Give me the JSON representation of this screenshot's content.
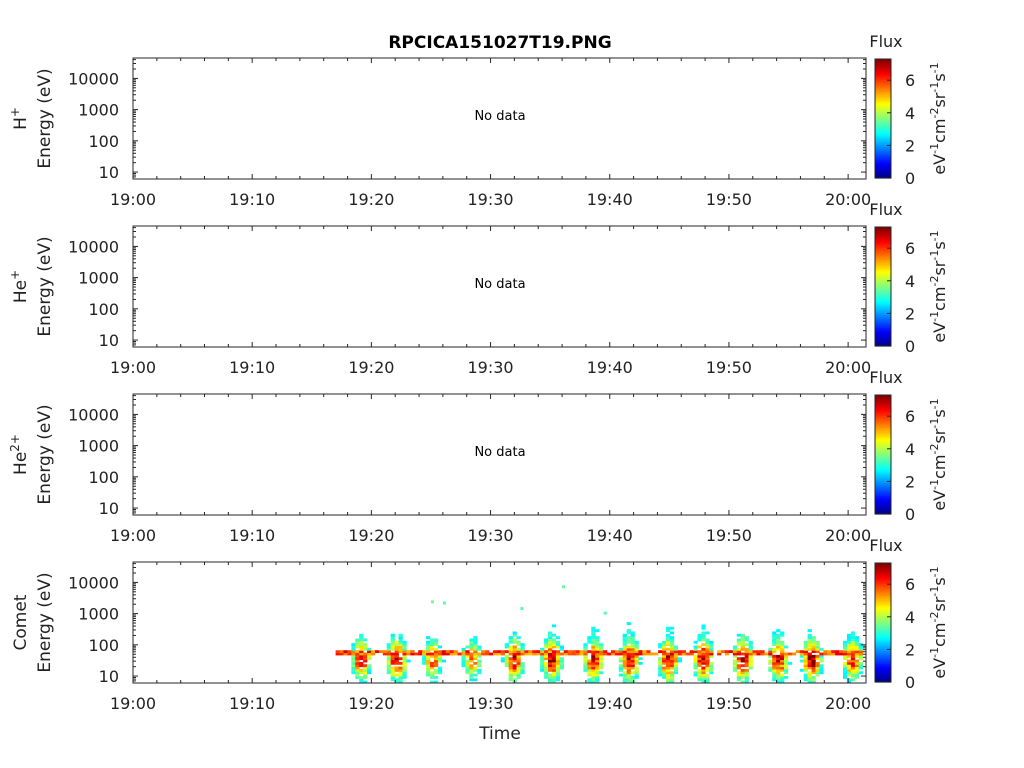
{
  "title": "RPCICA151027T19.PNG",
  "xlabel": "Time",
  "colorbar": {
    "title": "Flux",
    "ticks": [
      "0",
      "2",
      "4",
      "6"
    ],
    "unit_parts": [
      "eV",
      "-1",
      "cm",
      "-2",
      "sr",
      "-1",
      "s",
      "-1"
    ],
    "range": [
      0,
      7.3
    ],
    "colormap": "jet"
  },
  "panels": [
    {
      "species_base": "H",
      "species_sup": "+",
      "ylabel": "Energy (eV)",
      "message": "No data"
    },
    {
      "species_base": "He",
      "species_sup": "+",
      "ylabel": "Energy (eV)",
      "message": "No data"
    },
    {
      "species_base": "He",
      "species_sup": "2+",
      "ylabel": "Energy (eV)",
      "message": "No data"
    },
    {
      "species_base": "Comet",
      "species_sup": "",
      "ylabel": "Energy (eV)",
      "message": ""
    }
  ],
  "chart_data": {
    "type": "heatmap",
    "title": "RPCICA151027T19.PNG",
    "xlabel": "Time",
    "x_tick_labels": [
      "19:00",
      "19:10",
      "19:20",
      "19:30",
      "19:40",
      "19:50",
      "20:00"
    ],
    "x_tick_minutes": [
      0,
      10,
      20,
      30,
      40,
      50,
      60
    ],
    "xlim_minutes": [
      0,
      61.5
    ],
    "y_scale": "log",
    "y_tick_labels": [
      "10",
      "100",
      "1000",
      "10000"
    ],
    "y_tick_values": [
      10,
      100,
      1000,
      10000
    ],
    "ylim": [
      6,
      45000
    ],
    "flux_range": [
      0,
      7.3
    ],
    "comet_bursts": [
      {
        "t_minutes": 19.0,
        "e_max": 300,
        "peak_flux": 6.3
      },
      {
        "t_minutes": 22.0,
        "e_max": 180,
        "peak_flux": 6.8
      },
      {
        "t_minutes": 25.0,
        "e_max": 600,
        "peak_flux": 5.8
      },
      {
        "t_minutes": 28.3,
        "e_max": 250,
        "peak_flux": 5.5
      },
      {
        "t_minutes": 31.8,
        "e_max": 700,
        "peak_flux": 6.6
      },
      {
        "t_minutes": 35.0,
        "e_max": 500,
        "peak_flux": 6.8
      },
      {
        "t_minutes": 38.5,
        "e_max": 500,
        "peak_flux": 6.7
      },
      {
        "t_minutes": 41.5,
        "e_max": 450,
        "peak_flux": 6.9
      },
      {
        "t_minutes": 44.8,
        "e_max": 300,
        "peak_flux": 6.9
      },
      {
        "t_minutes": 47.7,
        "e_max": 350,
        "peak_flux": 6.8
      },
      {
        "t_minutes": 51.0,
        "e_max": 350,
        "peak_flux": 6.9
      },
      {
        "t_minutes": 54.0,
        "e_max": 350,
        "peak_flux": 6.7
      },
      {
        "t_minutes": 56.8,
        "e_max": 300,
        "peak_flux": 6.9
      },
      {
        "t_minutes": 60.2,
        "e_max": 200,
        "peak_flux": 6.3
      }
    ],
    "comet_band": {
      "t_start_minutes": 17.0,
      "t_end_minutes": 61.0,
      "energy_ev": 50,
      "flux": 5.8
    }
  }
}
